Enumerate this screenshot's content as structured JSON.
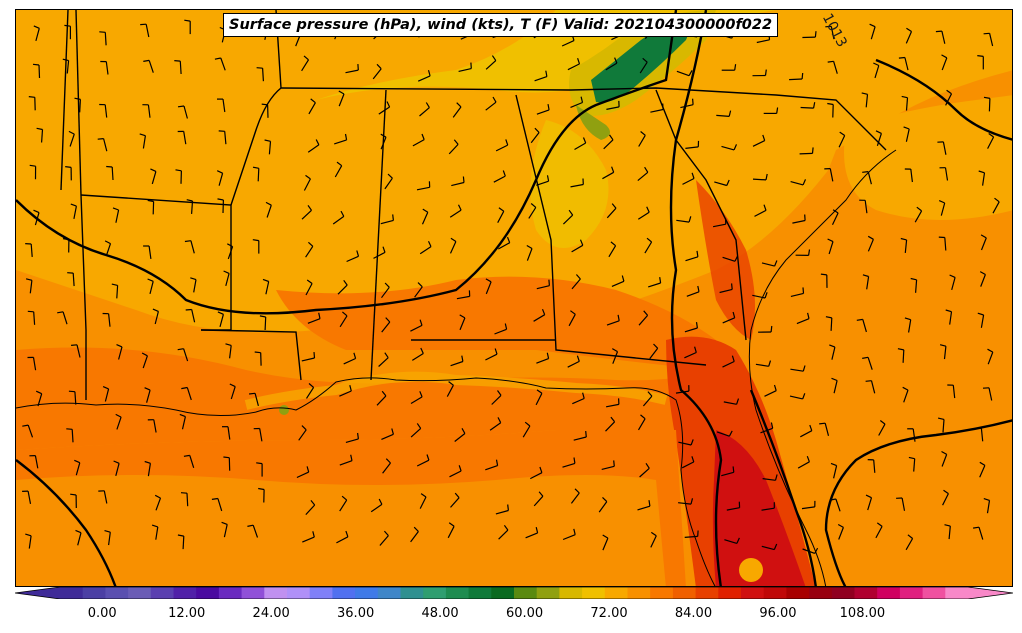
{
  "title": "Surface pressure (hPa), wind (kts), T (F) Valid: 202104300000f022",
  "contour_label": "1013",
  "colorbar": {
    "tick_labels": [
      "0.00",
      "12.00",
      "24.00",
      "36.00",
      "48.00",
      "60.00",
      "72.00",
      "84.00",
      "96.00",
      "108.00"
    ],
    "tick_values": [
      0,
      12,
      24,
      36,
      48,
      60,
      72,
      84,
      96,
      108
    ],
    "min": -6,
    "max": 123,
    "extend": "both",
    "colors": [
      "#3f2b98",
      "#4b3fa4",
      "#5a4fb0",
      "#6a5cb6",
      "#5a3fb0",
      "#5020a8",
      "#4a0aa0",
      "#6a2ac0",
      "#9050d8",
      "#c090f0",
      "#b090f8",
      "#8080f8",
      "#5070f0",
      "#3f7ae8",
      "#3f86c8",
      "#2f9090",
      "#2f9e70",
      "#1e8c50",
      "#107a3a",
      "#0a6a20",
      "#5a8a10",
      "#90a010",
      "#d8b800",
      "#f0c000",
      "#f8a800",
      "#f89000",
      "#f87800",
      "#f06000",
      "#e84000",
      "#e02000",
      "#d01010",
      "#c00808",
      "#a80000",
      "#980010",
      "#900020",
      "#b00030",
      "#d00060",
      "#e02080",
      "#f050a0",
      "#f888c8"
    ]
  },
  "field_colors": {
    "t_72_75": "#f8a800",
    "t_75_78": "#f89000",
    "t_78_81": "#f87800",
    "t_81_84": "#f06000",
    "t_84_87": "#e84000",
    "t_87_90": "#e02000",
    "t_90_93": "#d01010",
    "t_63_66": "#90a010",
    "t_66_69": "#d8b800",
    "t_69_72": "#f0c000",
    "t_57_60": "#107a3a"
  }
}
